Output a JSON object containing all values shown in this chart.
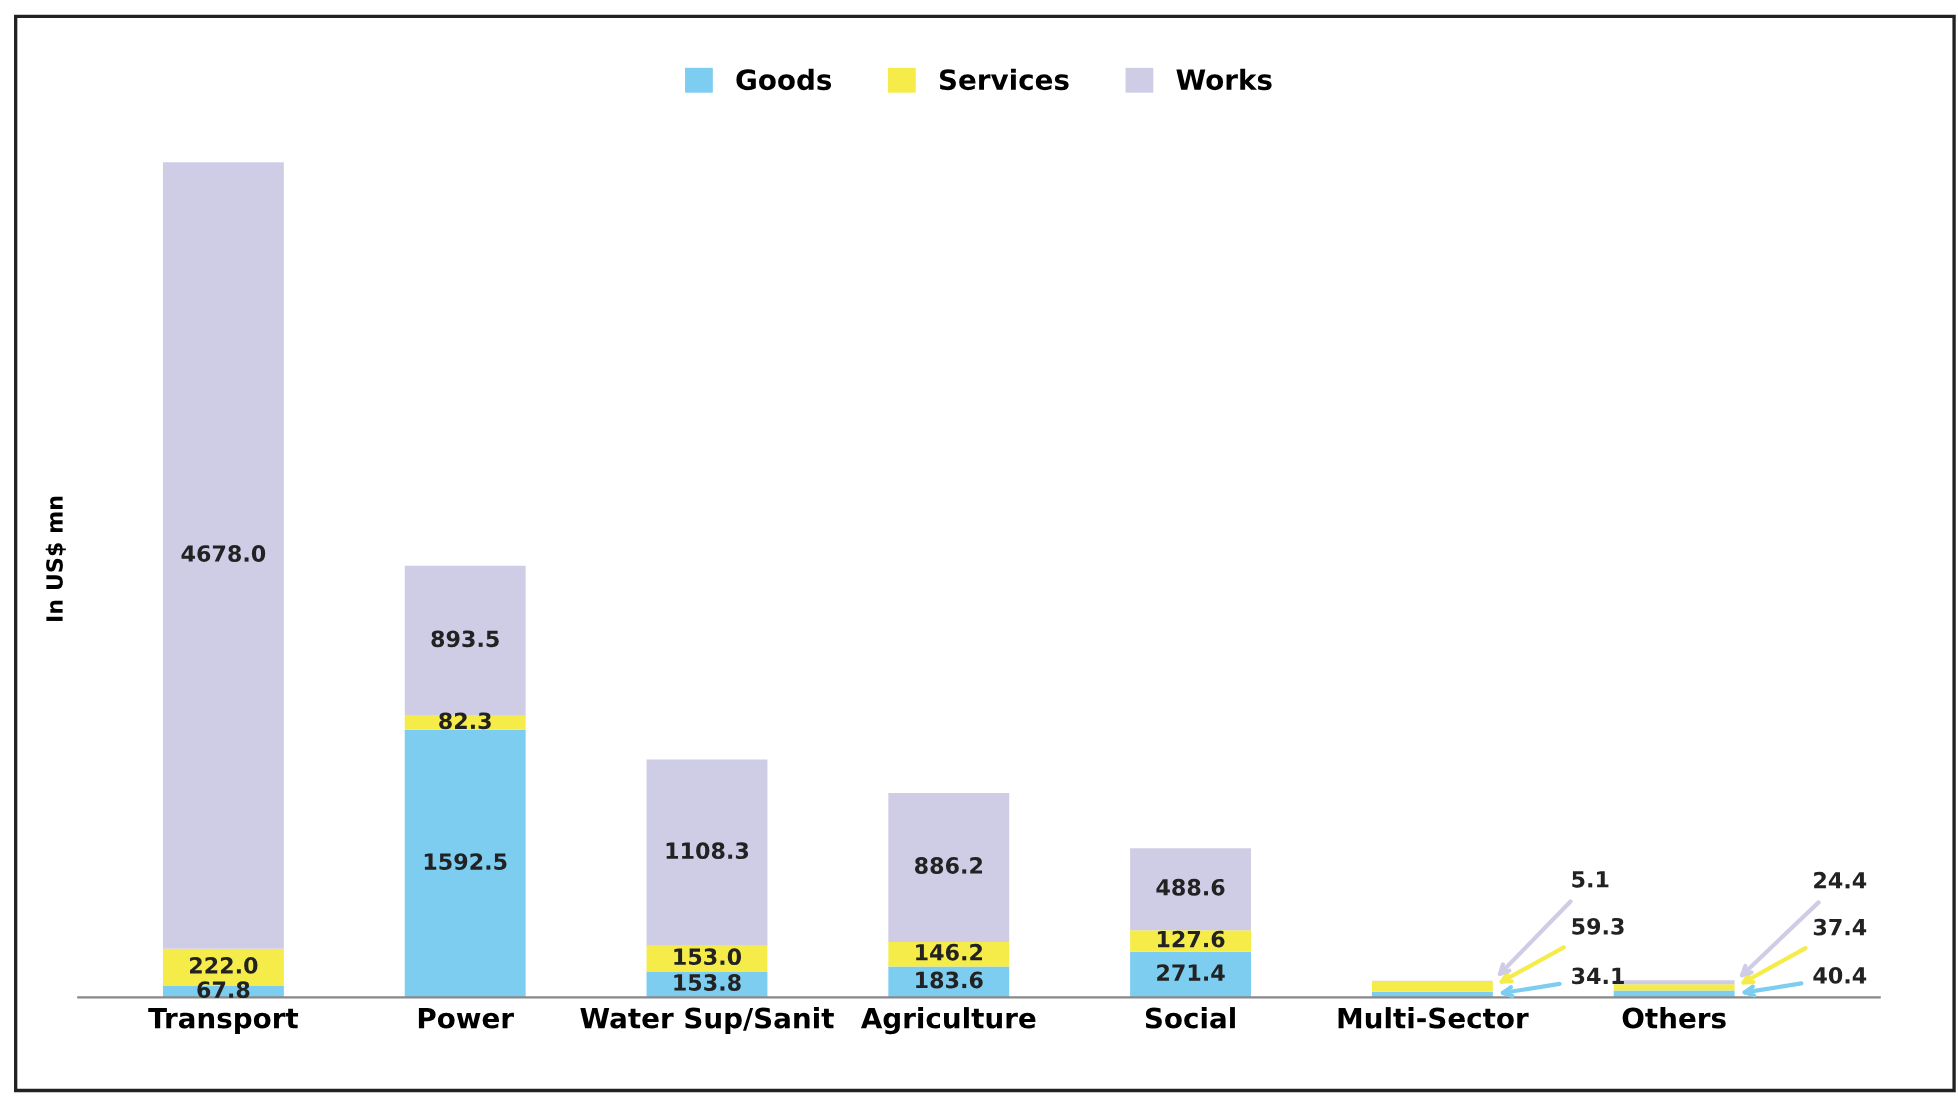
{
  "chart_data": {
    "type": "bar",
    "stacked": true,
    "ylabel": "In US$ mn",
    "categories": [
      "Transport",
      "Power",
      "Water Sup/Sanit",
      "Agriculture",
      "Social",
      "Multi-Sector",
      "Others"
    ],
    "series": [
      {
        "name": "Goods",
        "color": "#7dcdf0",
        "values": [
          67.8,
          1592.5,
          153.8,
          183.6,
          271.4,
          34.1,
          40.4
        ],
        "value_labels": [
          "67.8",
          "1592.5",
          "153.8",
          "183.6",
          "271.4",
          "34.1",
          "40.4"
        ]
      },
      {
        "name": "Services",
        "color": "#f5ec4a",
        "values": [
          222.0,
          82.3,
          153.0,
          146.2,
          127.6,
          59.3,
          37.4
        ],
        "value_labels": [
          "222.0",
          "82.3",
          "153.0",
          "146.2",
          "127.6",
          "59.3",
          "37.4"
        ]
      },
      {
        "name": "Works",
        "color": "#cfcce6",
        "values": [
          4678.0,
          893.5,
          1108.3,
          886.2,
          488.6,
          5.1,
          24.4
        ],
        "value_labels": [
          "4678.0",
          "893.5",
          "1108.3",
          "886.2",
          "488.6",
          "5.1",
          "24.4"
        ]
      }
    ],
    "legend": "top",
    "tick_labels": "x",
    "grid": false
  }
}
